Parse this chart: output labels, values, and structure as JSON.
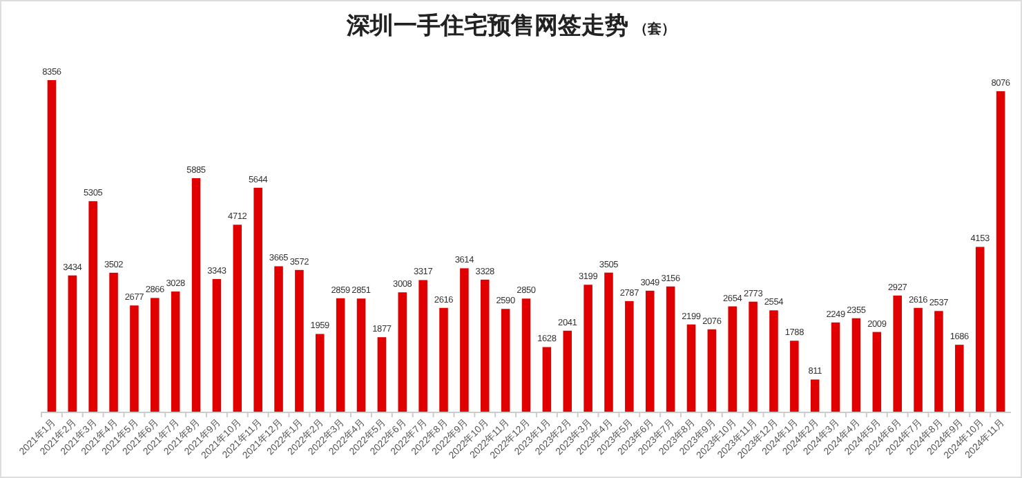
{
  "chart_data": {
    "type": "bar",
    "title": "深圳一手住宅预售网签走势",
    "subtitle": "（套）",
    "categories": [
      "2021年1月",
      "2021年2月",
      "2021年3月",
      "2021年4月",
      "2021年5月",
      "2021年6月",
      "2021年7月",
      "2021年8月",
      "2021年9月",
      "2021年10月",
      "2021年11月",
      "2021年12月",
      "2022年1月",
      "2022年2月",
      "2022年3月",
      "2022年4月",
      "2022年5月",
      "2022年6月",
      "2022年7月",
      "2022年8月",
      "2022年9月",
      "2022年10月",
      "2022年11月",
      "2022年12月",
      "2023年1月",
      "2023年2月",
      "2023年3月",
      "2023年4月",
      "2023年5月",
      "2023年6月",
      "2023年7月",
      "2023年8月",
      "2023年9月",
      "2023年10月",
      "2023年11月",
      "2023年12月",
      "2024年1月",
      "2024年2月",
      "2024年3月",
      "2024年4月",
      "2024年5月",
      "2024年6月",
      "2024年7月",
      "2024年8月",
      "2024年9月",
      "2024年10月",
      "2024年11月"
    ],
    "values": [
      8356,
      3434,
      5305,
      3502,
      2677,
      2866,
      3028,
      5885,
      3343,
      4712,
      5644,
      3665,
      3572,
      1959,
      2859,
      2851,
      1877,
      3008,
      3317,
      2616,
      3614,
      3328,
      2590,
      2850,
      1628,
      2041,
      3199,
      3505,
      2787,
      3049,
      3156,
      2199,
      2076,
      2654,
      2773,
      2554,
      1788,
      811,
      2249,
      2355,
      2009,
      2927,
      2616,
      2537,
      1686,
      4153,
      8076
    ],
    "color": "#e00000",
    "data_labels": true
  }
}
